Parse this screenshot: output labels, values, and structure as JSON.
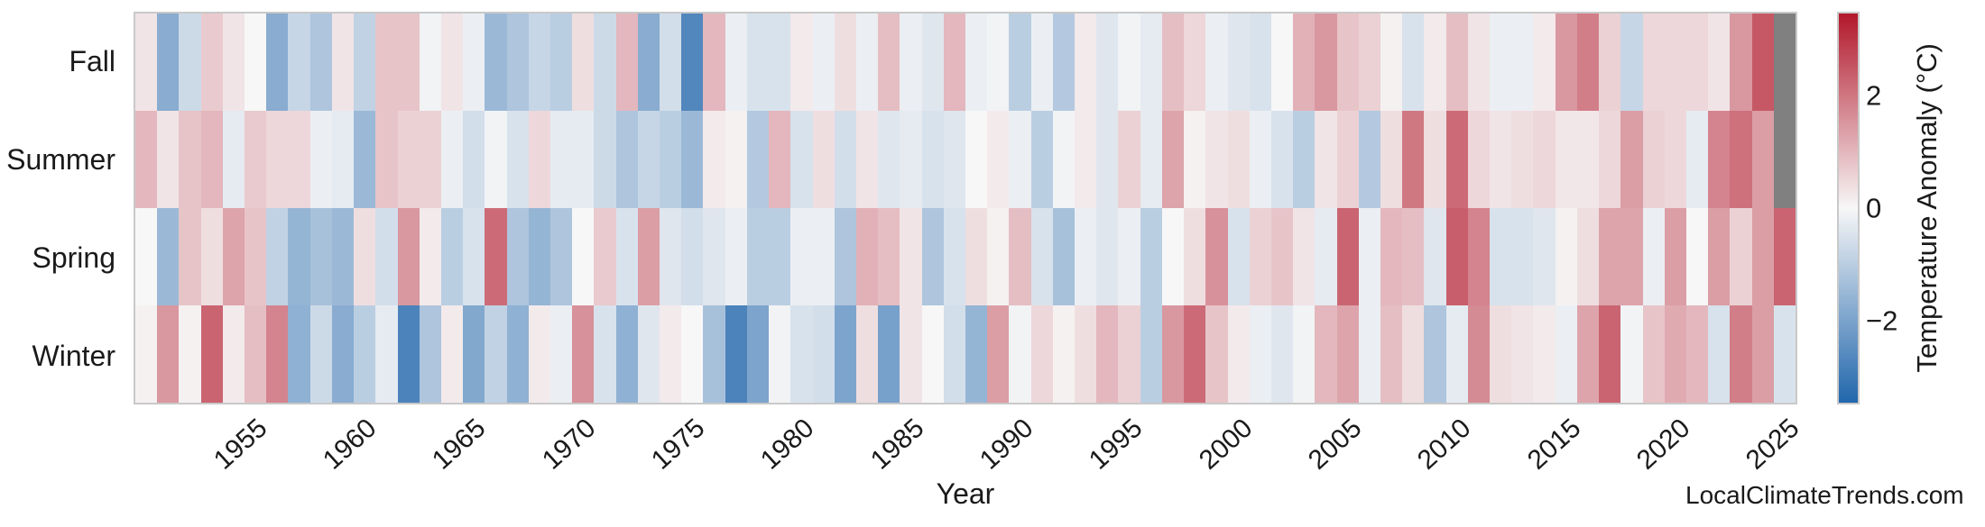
{
  "watermark": "LocalClimateTrends.com",
  "axes": {
    "xlabel": "Year",
    "x_tick_labels": [
      "1955",
      "1960",
      "1965",
      "1970",
      "1975",
      "1980",
      "1985",
      "1990",
      "1995",
      "2000",
      "2005",
      "2010",
      "2015",
      "2020",
      "2025"
    ],
    "y_tick_labels": [
      "Fall",
      "Summer",
      "Spring",
      "Winter"
    ]
  },
  "colorbar": {
    "label": "Temperature Anomaly (°C)",
    "tick_labels": [
      "2",
      "0",
      "−2"
    ],
    "tick_values": [
      2,
      0,
      -2
    ],
    "vmin": -3.5,
    "vmax": 3.5,
    "color_positive_end": "#b2182b",
    "color_mid": "#f7f7f7",
    "color_negative_end": "#2166ac",
    "color_missing": "#808080"
  },
  "chart_data": {
    "type": "heatmap",
    "title": "",
    "xlabel": "Year",
    "ylabel": "",
    "legend_position": "right-colorbar",
    "grid": false,
    "value_range": [
      -3.5,
      3.5
    ],
    "years": [
      1950,
      1951,
      1952,
      1953,
      1954,
      1955,
      1956,
      1957,
      1958,
      1959,
      1960,
      1961,
      1962,
      1963,
      1964,
      1965,
      1966,
      1967,
      1968,
      1969,
      1970,
      1971,
      1972,
      1973,
      1974,
      1975,
      1976,
      1977,
      1978,
      1979,
      1980,
      1981,
      1982,
      1983,
      1984,
      1985,
      1986,
      1987,
      1988,
      1989,
      1990,
      1991,
      1992,
      1993,
      1994,
      1995,
      1996,
      1997,
      1998,
      1999,
      2000,
      2001,
      2002,
      2003,
      2004,
      2005,
      2006,
      2007,
      2008,
      2009,
      2010,
      2011,
      2012,
      2013,
      2014,
      2015,
      2016,
      2017,
      2018,
      2019,
      2020,
      2021,
      2022,
      2023,
      2024,
      2025
    ],
    "series": [
      {
        "name": "Fall",
        "values": [
          0.3,
          -1.8,
          -0.7,
          0.7,
          0.3,
          0.0,
          -1.8,
          -0.8,
          -1.2,
          0.3,
          -0.9,
          0.8,
          0.8,
          -0.1,
          0.3,
          -0.2,
          -1.5,
          -1.2,
          -0.8,
          -1.0,
          0.4,
          -0.7,
          1.0,
          -1.8,
          -0.6,
          -2.7,
          1.0,
          -0.2,
          -0.5,
          -0.5,
          0.2,
          -0.2,
          0.4,
          -0.2,
          0.9,
          -0.2,
          -0.4,
          1.0,
          -0.2,
          -0.1,
          -1.0,
          -0.2,
          -1.1,
          0.2,
          -0.4,
          -0.1,
          -0.3,
          0.9,
          0.5,
          -0.2,
          -0.4,
          -0.5,
          0.0,
          1.1,
          1.5,
          0.8,
          0.6,
          0.1,
          -0.5,
          0.2,
          0.9,
          0.3,
          -0.2,
          -0.2,
          0.2,
          1.5,
          1.9,
          0.6,
          -0.8,
          0.5,
          0.5,
          0.5,
          0.3,
          1.5,
          2.5,
          null
        ]
      },
      {
        "name": "Summer",
        "values": [
          1.0,
          0.3,
          0.8,
          1.0,
          -0.3,
          0.7,
          0.5,
          0.5,
          -0.2,
          -0.3,
          -1.5,
          0.8,
          0.6,
          0.6,
          -0.2,
          -0.6,
          -0.1,
          -0.5,
          0.5,
          -0.3,
          -0.3,
          -0.7,
          -1.2,
          -0.8,
          -1.0,
          -1.5,
          0.2,
          0.1,
          -1.1,
          1.0,
          -0.5,
          0.4,
          -0.6,
          0.3,
          -0.4,
          -0.3,
          -0.5,
          -0.4,
          0.0,
          0.2,
          -0.2,
          -1.0,
          -0.1,
          0.2,
          -0.4,
          0.6,
          -0.3,
          1.3,
          0.1,
          0.3,
          0.4,
          -0.2,
          -0.5,
          -1.0,
          0.3,
          0.6,
          -1.1,
          0.4,
          2.0,
          0.4,
          2.2,
          0.5,
          0.3,
          0.4,
          0.5,
          0.25,
          0.25,
          0.5,
          1.4,
          0.6,
          0.5,
          -0.3,
          1.8,
          2.1,
          1.4,
          null
        ]
      },
      {
        "name": "Spring",
        "values": [
          0.0,
          -1.5,
          0.8,
          0.4,
          1.3,
          0.8,
          -0.9,
          -1.6,
          -1.3,
          -1.5,
          0.4,
          -0.6,
          1.5,
          0.2,
          -1.0,
          -0.5,
          2.2,
          -1.2,
          -1.6,
          -1.2,
          0.0,
          0.7,
          -0.5,
          1.4,
          -0.4,
          -0.6,
          -0.4,
          -0.2,
          -1.0,
          -1.0,
          -0.2,
          -0.2,
          -1.2,
          1.1,
          0.9,
          0.3,
          -1.2,
          -0.5,
          0.4,
          0.1,
          0.9,
          -0.5,
          -1.3,
          -0.2,
          -0.4,
          -0.2,
          -1.0,
          0.0,
          0.4,
          1.6,
          -0.5,
          0.6,
          0.8,
          0.3,
          -0.3,
          2.3,
          -0.2,
          1.0,
          0.9,
          -0.4,
          2.4,
          1.8,
          -0.5,
          -0.5,
          -0.4,
          0.1,
          0.4,
          1.3,
          1.3,
          -0.2,
          1.4,
          0.0,
          1.4,
          0.6,
          1.4,
          2.3
        ]
      },
      {
        "name": "Winter",
        "values": [
          0.1,
          1.5,
          0.1,
          2.3,
          0.2,
          0.9,
          1.8,
          -1.7,
          -0.7,
          -1.8,
          -1.0,
          -0.3,
          -2.8,
          -1.2,
          0.2,
          -1.9,
          -0.9,
          -1.7,
          0.2,
          -0.2,
          1.6,
          -0.5,
          -1.7,
          -0.4,
          0.2,
          0.0,
          -1.3,
          -2.8,
          -2.0,
          -0.1,
          -0.5,
          -0.6,
          -2.0,
          0.4,
          -2.1,
          0.3,
          0.0,
          -0.6,
          -1.6,
          1.4,
          -0.1,
          0.5,
          0.1,
          0.4,
          1.0,
          0.6,
          -1.0,
          1.5,
          2.2,
          0.8,
          0.2,
          -0.2,
          -0.4,
          -0.1,
          1.0,
          1.3,
          -0.2,
          0.9,
          0.4,
          -1.2,
          -0.3,
          1.7,
          0.4,
          0.3,
          0.2,
          -0.2,
          1.3,
          2.3,
          -0.1,
          0.8,
          1.2,
          1.0,
          -0.5,
          1.9,
          1.4,
          -0.5
        ]
      }
    ]
  }
}
